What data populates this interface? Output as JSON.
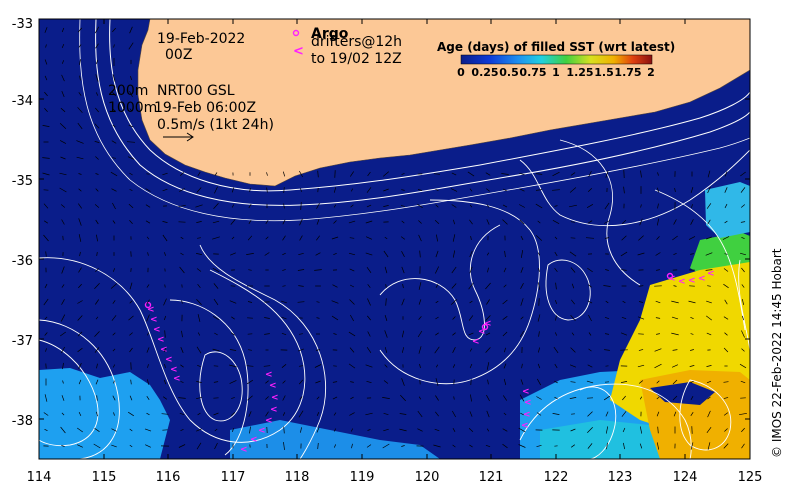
{
  "map": {
    "date": "19-Feb-2022",
    "time": "00Z",
    "contour_depths": [
      "200m",
      "1000m"
    ],
    "altimetry_product": "NRT00 GSL",
    "altimetry_time": "19-Feb 06:00Z",
    "velocity_scale": "0.5m/s (1kt 24h)",
    "argo_label": "Argo",
    "drifters_label_1": "drifters@12h",
    "drifters_label_2": "to 19/02 12Z",
    "argo_marker": "o",
    "drifter_marker": "<",
    "credit": "© IMOS 22-Feb-2022 14:45 Hobart",
    "x_axis": {
      "ticks": [
        "114",
        "115",
        "116",
        "117",
        "118",
        "119",
        "120",
        "121",
        "122",
        "123",
        "124",
        "125"
      ],
      "range": [
        114,
        125
      ]
    },
    "y_axis": {
      "ticks": [
        "-33",
        "-34",
        "-35",
        "-36",
        "-37",
        "-38"
      ],
      "range": [
        -38.5,
        -33
      ]
    },
    "colorbar": {
      "title": "Age (days) of filled SST (wrt latest)",
      "range": [
        0,
        2
      ],
      "ticks": [
        "0",
        "0.25",
        "0.5",
        "0.75",
        "1",
        "1.25",
        "1.5",
        "1.75",
        "2"
      ]
    },
    "colors": {
      "land": "#fcc896",
      "sea_recent": "#0a1d8a",
      "sea_older": "#1ea0f0",
      "sea_oldest": "#f0d800",
      "contours": "#ffffff",
      "drifters": "#ff20ff"
    }
  }
}
